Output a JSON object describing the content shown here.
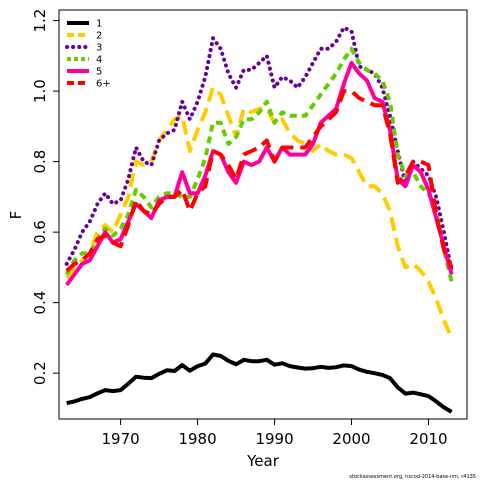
{
  "chart_data": {
    "type": "line",
    "xlabel": "Year",
    "ylabel": "F",
    "xlim": [
      1962,
      2015
    ],
    "ylim": [
      0.07,
      1.23
    ],
    "xticks": [
      1970,
      1980,
      1990,
      2000,
      2010
    ],
    "yticks": [
      0.2,
      0.4,
      0.6,
      0.8,
      1.0,
      1.2
    ],
    "legend_position": "top-left",
    "grid": false,
    "x": [
      1963,
      1964,
      1965,
      1966,
      1967,
      1968,
      1969,
      1970,
      1971,
      1972,
      1973,
      1974,
      1975,
      1976,
      1977,
      1978,
      1979,
      1980,
      1981,
      1982,
      1983,
      1984,
      1985,
      1986,
      1987,
      1988,
      1989,
      1990,
      1991,
      1992,
      1993,
      1994,
      1995,
      1996,
      1997,
      1998,
      1999,
      2000,
      2001,
      2002,
      2003,
      2004,
      2005,
      2006,
      2007,
      2008,
      2009,
      2010,
      2011,
      2012,
      2013
    ],
    "series": [
      {
        "name": "1",
        "color": "#000000",
        "dash": "solid",
        "values": [
          0.115,
          0.12,
          0.127,
          0.132,
          0.143,
          0.152,
          0.149,
          0.152,
          0.17,
          0.19,
          0.187,
          0.186,
          0.198,
          0.208,
          0.206,
          0.223,
          0.207,
          0.22,
          0.227,
          0.253,
          0.249,
          0.235,
          0.225,
          0.238,
          0.234,
          0.234,
          0.238,
          0.224,
          0.228,
          0.22,
          0.216,
          0.213,
          0.214,
          0.218,
          0.215,
          0.217,
          0.222,
          0.22,
          0.21,
          0.204,
          0.2,
          0.195,
          0.186,
          0.16,
          0.142,
          0.145,
          0.14,
          0.135,
          0.12,
          0.103,
          0.09
        ]
      },
      {
        "name": "2",
        "color": "#ffcc00",
        "dash": "long",
        "values": [
          0.47,
          0.5,
          0.52,
          0.54,
          0.6,
          0.62,
          0.6,
          0.65,
          0.7,
          0.8,
          0.79,
          0.8,
          0.86,
          0.89,
          0.92,
          0.93,
          0.83,
          0.89,
          0.94,
          1.01,
          0.99,
          0.93,
          0.87,
          0.95,
          0.94,
          0.95,
          0.95,
          0.91,
          0.92,
          0.88,
          0.86,
          0.85,
          0.83,
          0.85,
          0.83,
          0.82,
          0.82,
          0.81,
          0.77,
          0.73,
          0.73,
          0.71,
          0.66,
          0.56,
          0.5,
          0.51,
          0.49,
          0.46,
          0.41,
          0.35,
          0.3
        ]
      },
      {
        "name": "3",
        "color": "#660099",
        "dash": "dot",
        "values": [
          0.51,
          0.55,
          0.6,
          0.63,
          0.68,
          0.71,
          0.68,
          0.69,
          0.75,
          0.84,
          0.8,
          0.79,
          0.86,
          0.88,
          0.89,
          0.97,
          0.92,
          0.97,
          1.04,
          1.15,
          1.12,
          1.05,
          1.01,
          1.06,
          1.06,
          1.08,
          1.1,
          1.01,
          1.04,
          1.03,
          1.01,
          1.04,
          1.08,
          1.12,
          1.12,
          1.14,
          1.18,
          1.17,
          1.07,
          1.06,
          1.05,
          1.01,
          0.93,
          0.83,
          0.74,
          0.8,
          0.78,
          0.76,
          0.7,
          0.6,
          0.49
        ]
      },
      {
        "name": "4",
        "color": "#66cc00",
        "dash": "medium",
        "values": [
          0.48,
          0.52,
          0.54,
          0.54,
          0.58,
          0.61,
          0.59,
          0.61,
          0.65,
          0.72,
          0.7,
          0.67,
          0.7,
          0.71,
          0.71,
          0.7,
          0.7,
          0.75,
          0.81,
          0.91,
          0.91,
          0.85,
          0.87,
          0.92,
          0.92,
          0.94,
          0.97,
          0.91,
          0.94,
          0.93,
          0.93,
          0.93,
          0.96,
          0.99,
          1.02,
          1.05,
          1.09,
          1.12,
          1.08,
          1.06,
          1.05,
          1.03,
          0.97,
          0.82,
          0.76,
          0.77,
          0.73,
          0.71,
          0.66,
          0.55,
          0.46
        ]
      },
      {
        "name": "5",
        "color": "#ff0099",
        "dash": "solid",
        "values": [
          0.45,
          0.48,
          0.51,
          0.52,
          0.56,
          0.6,
          0.57,
          0.58,
          0.63,
          0.68,
          0.66,
          0.64,
          0.69,
          0.7,
          0.7,
          0.77,
          0.71,
          0.71,
          0.76,
          0.83,
          0.82,
          0.77,
          0.74,
          0.8,
          0.79,
          0.8,
          0.84,
          0.8,
          0.84,
          0.82,
          0.82,
          0.82,
          0.85,
          0.91,
          0.93,
          0.95,
          1.02,
          1.08,
          1.05,
          1.03,
          0.98,
          0.97,
          0.89,
          0.75,
          0.73,
          0.79,
          0.77,
          0.72,
          0.64,
          0.56,
          0.48
        ]
      },
      {
        "name": "6+",
        "color": "#ff0000",
        "dash": "long",
        "values": [
          0.49,
          0.51,
          0.52,
          0.54,
          0.58,
          0.59,
          0.57,
          0.56,
          0.62,
          0.69,
          0.66,
          0.65,
          0.68,
          0.7,
          0.7,
          0.72,
          0.66,
          0.71,
          0.73,
          0.83,
          0.82,
          0.79,
          0.75,
          0.82,
          0.83,
          0.84,
          0.86,
          0.8,
          0.84,
          0.84,
          0.84,
          0.84,
          0.87,
          0.9,
          0.92,
          0.94,
          1.0,
          1.0,
          0.98,
          0.97,
          0.96,
          0.96,
          0.88,
          0.74,
          0.76,
          0.8,
          0.8,
          0.79,
          0.65,
          0.55,
          0.5
        ]
      }
    ]
  },
  "footer_text": "stockassessment.org, nscod-2014-base-nm, r4135"
}
